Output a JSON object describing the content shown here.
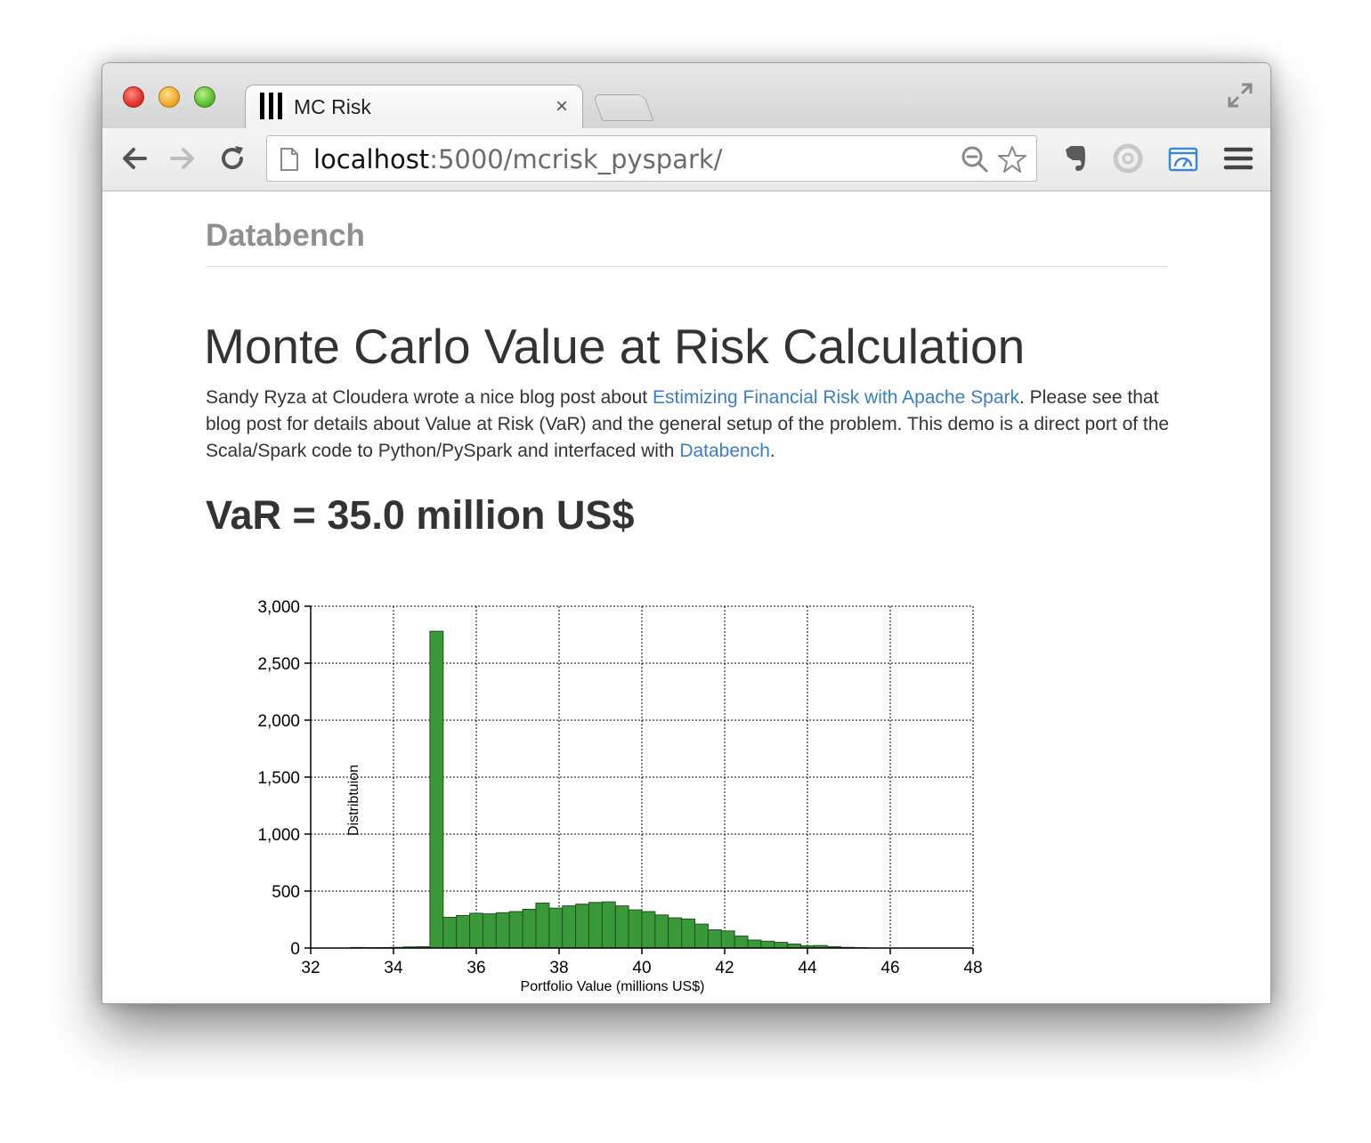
{
  "browser": {
    "tab_title": "MC Risk",
    "tab_close": "×",
    "url_host": "localhost",
    "url_rest": ":5000/mcrisk_pyspark/",
    "icons": [
      "back-arrow-icon",
      "forward-arrow-icon",
      "reload-icon",
      "page-icon",
      "search-zoom-icon",
      "star-icon",
      "evernote-icon",
      "circle-extension-icon",
      "dashboard-extension-icon",
      "menu-icon",
      "fullscreen-icon"
    ]
  },
  "page": {
    "brand": "Databench",
    "title": "Monte Carlo Value at Risk Calculation",
    "intro": {
      "part1": "Sandy Ryza at Cloudera wrote a nice blog post about ",
      "link1": "Estimizing Financial Risk with Apache Spark",
      "part2": ". Please see that blog post for details about Value at Risk (VaR) and the general setup of the problem. This demo is a direct port of the Scala/Spark code to Python/PySpark and interfaced with ",
      "link2": "Databench",
      "part3": "."
    },
    "var_label": "VaR = 35.0 million US$",
    "link_color": "#3b7fc0"
  },
  "chart_data": {
    "type": "bar",
    "xlabel": "Portfolio Value (millions US$)",
    "ylabel": "Distribtuion",
    "xlim": [
      32,
      48
    ],
    "ylim": [
      0,
      3000
    ],
    "xticks": [
      32,
      34,
      36,
      38,
      40,
      42,
      44,
      46,
      48
    ],
    "yticks": [
      0,
      500,
      1000,
      1500,
      2000,
      2500,
      3000
    ],
    "ytick_labels": [
      "0",
      "500",
      "1,000",
      "1,500",
      "2,000",
      "2,500",
      "3,000"
    ],
    "grid": true,
    "bar_color": "#3a9a3a",
    "bin_width": 0.32,
    "bins": [
      {
        "x0": 32.96,
        "value": 5
      },
      {
        "x0": 33.28,
        "value": 3
      },
      {
        "x0": 33.6,
        "value": 4
      },
      {
        "x0": 33.92,
        "value": 6
      },
      {
        "x0": 34.24,
        "value": 10
      },
      {
        "x0": 34.56,
        "value": 12
      },
      {
        "x0": 34.88,
        "value": 2780
      },
      {
        "x0": 35.2,
        "value": 270
      },
      {
        "x0": 35.52,
        "value": 285
      },
      {
        "x0": 35.84,
        "value": 305
      },
      {
        "x0": 36.16,
        "value": 300
      },
      {
        "x0": 36.48,
        "value": 310
      },
      {
        "x0": 36.8,
        "value": 320
      },
      {
        "x0": 37.12,
        "value": 340
      },
      {
        "x0": 37.44,
        "value": 395
      },
      {
        "x0": 37.76,
        "value": 350
      },
      {
        "x0": 38.08,
        "value": 370
      },
      {
        "x0": 38.4,
        "value": 385
      },
      {
        "x0": 38.72,
        "value": 400
      },
      {
        "x0": 39.04,
        "value": 405
      },
      {
        "x0": 39.36,
        "value": 370
      },
      {
        "x0": 39.68,
        "value": 335
      },
      {
        "x0": 40.0,
        "value": 320
      },
      {
        "x0": 40.32,
        "value": 290
      },
      {
        "x0": 40.64,
        "value": 265
      },
      {
        "x0": 40.96,
        "value": 255
      },
      {
        "x0": 41.28,
        "value": 210
      },
      {
        "x0": 41.6,
        "value": 160
      },
      {
        "x0": 41.92,
        "value": 150
      },
      {
        "x0": 42.24,
        "value": 105
      },
      {
        "x0": 42.56,
        "value": 70
      },
      {
        "x0": 42.88,
        "value": 60
      },
      {
        "x0": 43.2,
        "value": 50
      },
      {
        "x0": 43.52,
        "value": 35
      },
      {
        "x0": 43.84,
        "value": 20
      },
      {
        "x0": 44.16,
        "value": 22
      },
      {
        "x0": 44.48,
        "value": 12
      },
      {
        "x0": 44.8,
        "value": 6
      },
      {
        "x0": 45.12,
        "value": 3
      }
    ]
  }
}
